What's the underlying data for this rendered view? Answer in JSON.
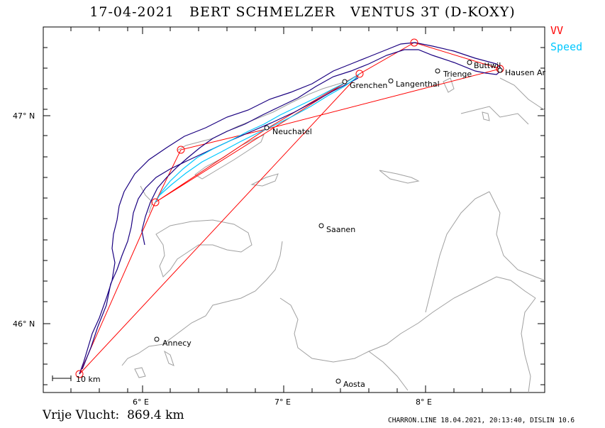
{
  "header": {
    "title": "17-04-2021   BERT SCHMELZER   VENTUS 3T (D-KOXY)"
  },
  "legend": {
    "vv_label": "VV",
    "speed_label": "Speed",
    "vv_color": "#ff0000",
    "speed_color": "#00c8ff",
    "track_color": "#1a0080"
  },
  "axes": {
    "lat_ticks": [
      "47° N",
      "46° N"
    ],
    "lon_ticks": [
      "6° E",
      "7° E",
      "8° E"
    ]
  },
  "places": [
    {
      "name": "Buttwil"
    },
    {
      "name": "Hausen Ar"
    },
    {
      "name": "Trienge"
    },
    {
      "name": "Langenthal"
    },
    {
      "name": "Grenchen"
    },
    {
      "name": "Neuchatel"
    },
    {
      "name": "Saanen"
    },
    {
      "name": "Annecy"
    },
    {
      "name": "Aosta"
    }
  ],
  "scale": {
    "label": "10 km"
  },
  "footer": {
    "distance": "Vrije Vlucht:  869.4 km",
    "info": "CHARRON.LINE 18.04.2021, 20:13:40, DISLIN 10.6"
  }
}
